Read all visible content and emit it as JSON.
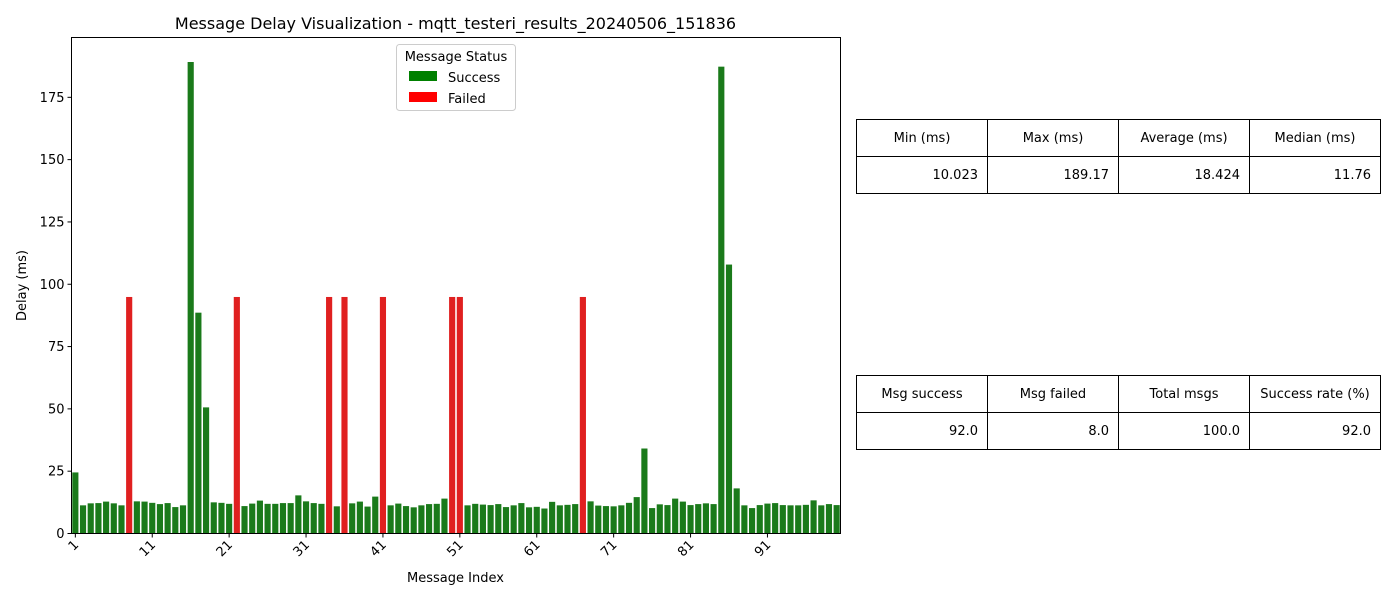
{
  "chart_data": {
    "type": "bar",
    "title": "Message Delay Visualization - mqtt_testeri_results_20240506_151836",
    "xlabel": "Message Index",
    "ylabel": "Delay (ms)",
    "ylim": [
      0,
      199
    ],
    "yticks": [
      0,
      25,
      50,
      75,
      100,
      125,
      150,
      175
    ],
    "xticks": [
      1,
      11,
      21,
      31,
      41,
      51,
      61,
      71,
      81,
      91
    ],
    "xtick_rotation": 45,
    "grid": false,
    "legend": {
      "title": "Message Status",
      "placement": "top-center",
      "entries": [
        {
          "label": "Success",
          "color": "#008000"
        },
        {
          "label": "Failed",
          "color": "#ff0000"
        }
      ]
    },
    "status_colors": {
      "success": "#008000",
      "failed": "#ff0000"
    },
    "categories": [
      1,
      2,
      3,
      4,
      5,
      6,
      7,
      8,
      9,
      10,
      11,
      12,
      13,
      14,
      15,
      16,
      17,
      18,
      19,
      20,
      21,
      22,
      23,
      24,
      25,
      26,
      27,
      28,
      29,
      30,
      31,
      32,
      33,
      34,
      35,
      36,
      37,
      38,
      39,
      40,
      41,
      42,
      43,
      44,
      45,
      46,
      47,
      48,
      49,
      50,
      51,
      52,
      53,
      54,
      55,
      56,
      57,
      58,
      59,
      60,
      61,
      62,
      63,
      64,
      65,
      66,
      67,
      68,
      69,
      70,
      71,
      72,
      73,
      74,
      75,
      76,
      77,
      78,
      79,
      80,
      81,
      82,
      83,
      84,
      85,
      86,
      87,
      88,
      89,
      90,
      91,
      92,
      93,
      94,
      95,
      96,
      97,
      98,
      99,
      100
    ],
    "values": [
      24.5,
      11.3,
      12.1,
      12.2,
      12.8,
      12.1,
      11.3,
      94.9,
      12.9,
      12.8,
      12.3,
      11.8,
      12.2,
      10.6,
      11.3,
      189.17,
      88.6,
      50.6,
      12.5,
      12.3,
      11.9,
      94.9,
      11.0,
      12.0,
      13.2,
      11.9,
      11.9,
      12.2,
      12.2,
      15.3,
      12.9,
      12.2,
      11.9,
      94.9,
      10.9,
      94.9,
      12.1,
      12.8,
      10.8,
      14.8,
      94.9,
      11.3,
      12.0,
      11.0,
      10.5,
      11.3,
      11.8,
      11.9,
      14.0,
      94.9,
      94.9,
      11.3,
      11.9,
      11.6,
      11.4,
      11.8,
      10.6,
      11.3,
      12.2,
      10.5,
      10.7,
      10.023,
      12.7,
      11.3,
      11.5,
      11.8,
      94.9,
      12.9,
      11.2,
      11.0,
      10.9,
      11.3,
      12.3,
      14.6,
      34.1,
      10.2,
      11.7,
      11.4,
      14.0,
      12.8,
      11.4,
      11.8,
      12.1,
      11.8,
      187.3,
      107.9,
      18.1,
      11.3,
      10.2,
      11.4,
      12.0,
      12.2,
      11.4,
      11.3,
      11.3,
      11.5,
      13.3,
      11.3,
      11.8,
      11.4
    ],
    "status": [
      "Success",
      "Success",
      "Success",
      "Success",
      "Success",
      "Success",
      "Success",
      "Failed",
      "Success",
      "Success",
      "Success",
      "Success",
      "Success",
      "Success",
      "Success",
      "Success",
      "Success",
      "Success",
      "Success",
      "Success",
      "Success",
      "Failed",
      "Success",
      "Success",
      "Success",
      "Success",
      "Success",
      "Success",
      "Success",
      "Success",
      "Success",
      "Success",
      "Success",
      "Failed",
      "Success",
      "Failed",
      "Success",
      "Success",
      "Success",
      "Success",
      "Failed",
      "Success",
      "Success",
      "Success",
      "Success",
      "Success",
      "Success",
      "Success",
      "Success",
      "Failed",
      "Failed",
      "Success",
      "Success",
      "Success",
      "Success",
      "Success",
      "Success",
      "Success",
      "Success",
      "Success",
      "Success",
      "Success",
      "Success",
      "Success",
      "Success",
      "Success",
      "Failed",
      "Success",
      "Success",
      "Success",
      "Success",
      "Success",
      "Success",
      "Success",
      "Success",
      "Success",
      "Success",
      "Success",
      "Success",
      "Success",
      "Success",
      "Success",
      "Success",
      "Success",
      "Success",
      "Success",
      "Success",
      "Success",
      "Success",
      "Success",
      "Success",
      "Success",
      "Success",
      "Success",
      "Success",
      "Success",
      "Success",
      "Success",
      "Success",
      "Success"
    ]
  },
  "tables": {
    "delay": {
      "headers": [
        "Min (ms)",
        "Max (ms)",
        "Average (ms)",
        "Median (ms)"
      ],
      "values": [
        "10.023",
        "189.17",
        "18.424",
        "11.76"
      ]
    },
    "messages": {
      "headers": [
        "Msg success",
        "Msg failed",
        "Total msgs",
        "Success rate (%)"
      ],
      "values": [
        "92.0",
        "8.0",
        "100.0",
        "92.0"
      ]
    }
  }
}
